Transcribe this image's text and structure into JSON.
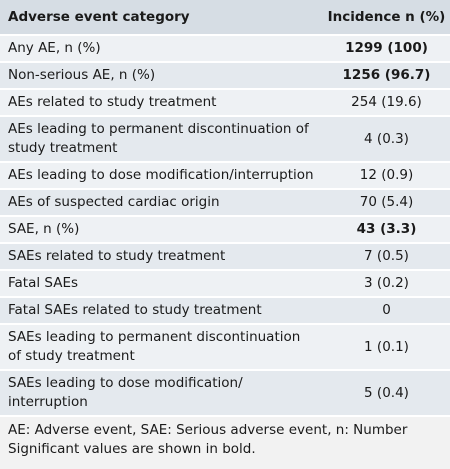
{
  "table": {
    "headers": {
      "category": "Adverse event category",
      "incidence": "Incidence n (%)"
    },
    "rows": [
      {
        "label": "Any AE, n (%)",
        "value": "1299 (100)",
        "bold": true
      },
      {
        "label": "Non-serious AE, n (%)",
        "value": "1256 (96.7)",
        "bold": true
      },
      {
        "label": "AEs related to study treatment",
        "value": "254 (19.6)",
        "bold": false
      },
      {
        "label": "AEs leading to permanent discontinuation of study treatment",
        "value": "4 (0.3)",
        "bold": false
      },
      {
        "label": "AEs leading to dose modification/interruption",
        "value": "12 (0.9)",
        "bold": false
      },
      {
        "label": "AEs of suspected cardiac origin",
        "value": "70 (5.4)",
        "bold": false
      },
      {
        "label": "SAE, n (%)",
        "value": "43 (3.3)",
        "bold": true
      },
      {
        "label": "SAEs related to study treatment",
        "value": "7 (0.5)",
        "bold": false
      },
      {
        "label": "Fatal SAEs",
        "value": "3 (0.2)",
        "bold": false
      },
      {
        "label": "Fatal SAEs related to study treatment",
        "value": "0",
        "bold": false
      },
      {
        "label": "SAEs leading to permanent discontinuation of study treatment",
        "value": "1 (0.1)",
        "bold": false
      },
      {
        "label": "SAEs leading to dose modification/ interruption",
        "value": "5 (0.4)",
        "bold": false
      }
    ],
    "footnotes": [
      "AE: Adverse event, SAE: Serious adverse event, n: Number",
      "Significant values are shown in bold."
    ]
  }
}
